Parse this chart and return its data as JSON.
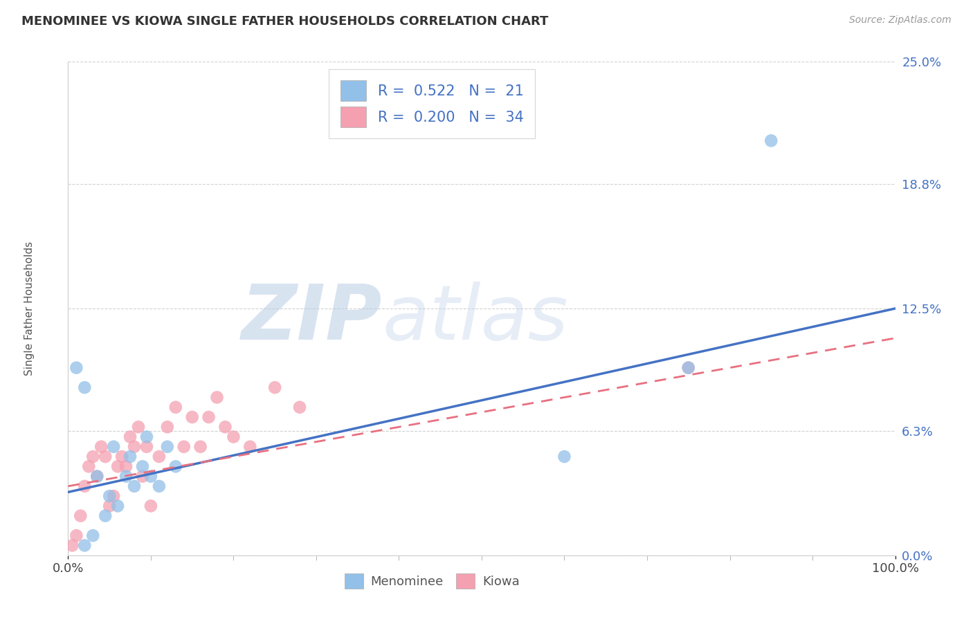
{
  "title": "MENOMINEE VS KIOWA SINGLE FATHER HOUSEHOLDS CORRELATION CHART",
  "source_text": "Source: ZipAtlas.com",
  "ylabel": "Single Father Households",
  "watermark_zip": "ZIP",
  "watermark_atlas": "atlas",
  "menominee_R": 0.522,
  "menominee_N": 21,
  "kiowa_R": 0.2,
  "kiowa_N": 34,
  "menominee_color": "#92C0E8",
  "kiowa_color": "#F4A0B0",
  "menominee_line_color": "#4472C4",
  "kiowa_line_color": "#E87080",
  "background_color": "#FFFFFF",
  "grid_color": "#CCCCCC",
  "ytick_labels": [
    "25.0%",
    "18.8%",
    "12.5%",
    "6.3%",
    "0.0%"
  ],
  "ytick_values": [
    25.0,
    18.8,
    12.5,
    6.3,
    0.0
  ],
  "xlim": [
    0,
    100
  ],
  "ylim": [
    0,
    25
  ],
  "menominee_line_x0": 0,
  "menominee_line_y0": 3.2,
  "menominee_line_x1": 100,
  "menominee_line_y1": 12.5,
  "kiowa_line_x0": 0,
  "kiowa_line_y0": 3.5,
  "kiowa_line_x1": 100,
  "kiowa_line_y1": 11.0,
  "menominee_x": [
    2.0,
    3.0,
    4.5,
    5.0,
    6.0,
    7.0,
    8.0,
    9.0,
    10.0,
    11.0,
    13.0,
    1.0,
    2.0,
    3.5,
    5.5,
    7.5,
    9.5,
    12.0,
    60.0,
    75.0,
    85.0
  ],
  "menominee_y": [
    0.5,
    1.0,
    2.0,
    3.0,
    2.5,
    4.0,
    3.5,
    4.5,
    4.0,
    3.5,
    4.5,
    9.5,
    8.5,
    4.0,
    5.5,
    5.0,
    6.0,
    5.5,
    5.0,
    9.5,
    21.0
  ],
  "kiowa_x": [
    0.5,
    1.0,
    1.5,
    2.0,
    2.5,
    3.0,
    3.5,
    4.0,
    4.5,
    5.0,
    5.5,
    6.0,
    6.5,
    7.0,
    7.5,
    8.0,
    8.5,
    9.0,
    9.5,
    10.0,
    11.0,
    12.0,
    13.0,
    14.0,
    15.0,
    16.0,
    17.0,
    18.0,
    19.0,
    20.0,
    22.0,
    25.0,
    28.0,
    75.0
  ],
  "kiowa_y": [
    0.5,
    1.0,
    2.0,
    3.5,
    4.5,
    5.0,
    4.0,
    5.5,
    5.0,
    2.5,
    3.0,
    4.5,
    5.0,
    4.5,
    6.0,
    5.5,
    6.5,
    4.0,
    5.5,
    2.5,
    5.0,
    6.5,
    7.5,
    5.5,
    7.0,
    5.5,
    7.0,
    8.0,
    6.5,
    6.0,
    5.5,
    8.5,
    7.5,
    9.5
  ]
}
